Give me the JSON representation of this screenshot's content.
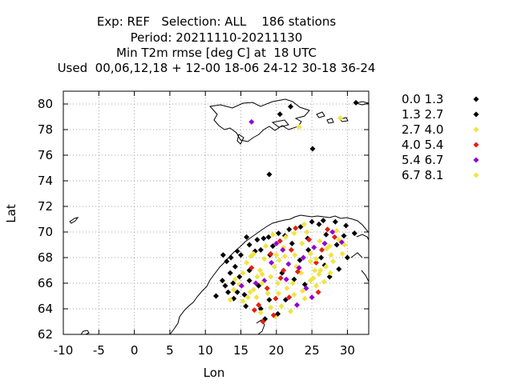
{
  "chart_data": {
    "type": "scatter",
    "title_lines": [
      "Exp: REF   Selection: ALL    186 stations",
      "Period: 20211110-20211130",
      "Min T2m rmse [deg C] at  18 UTC",
      "Used  00,06,12,18 + 12-00 18-06 24-12 30-18 36-24"
    ],
    "xlabel": "Lon",
    "ylabel": "Lat",
    "xlim": [
      -10,
      33
    ],
    "ylim": [
      62,
      81
    ],
    "x_ticks": [
      -10,
      -5,
      0,
      5,
      10,
      15,
      20,
      25,
      30
    ],
    "y_ticks": [
      62,
      64,
      66,
      68,
      70,
      72,
      74,
      76,
      78,
      80
    ],
    "grid": true,
    "legend_position": "right",
    "series": [
      {
        "name": "0.0 1.3",
        "color": "#000000",
        "points": [
          [
            20.5,
            79.2
          ],
          [
            22.0,
            79.8
          ],
          [
            25.1,
            76.5
          ],
          [
            19.0,
            74.5
          ],
          [
            31.2,
            80.1
          ],
          [
            14.5,
            68.5
          ],
          [
            15.0,
            68.2
          ],
          [
            13.6,
            68.0
          ],
          [
            13.0,
            67.7
          ],
          [
            14.2,
            67.3
          ],
          [
            12.4,
            66.2
          ],
          [
            12.8,
            65.8
          ],
          [
            13.2,
            65.3
          ],
          [
            14.0,
            64.8
          ],
          [
            11.5,
            65.0
          ],
          [
            17.3,
            69.4
          ],
          [
            18.9,
            69.6
          ],
          [
            20.3,
            69.9
          ],
          [
            21.8,
            70.2
          ],
          [
            23.4,
            70.4
          ],
          [
            25.0,
            70.8
          ],
          [
            26.6,
            70.9
          ],
          [
            28.3,
            70.8
          ],
          [
            29.8,
            70.5
          ],
          [
            17.8,
            68.6
          ],
          [
            19.1,
            68.2
          ],
          [
            16.2,
            67.0
          ],
          [
            14.8,
            66.5
          ],
          [
            13.5,
            66.8
          ],
          [
            22.2,
            69.1
          ],
          [
            28.5,
            69.0
          ],
          [
            30.0,
            68.0
          ],
          [
            26.8,
            67.4
          ],
          [
            17.5,
            65.8
          ],
          [
            15.5,
            65.1
          ],
          [
            18.4,
            63.2
          ],
          [
            20.2,
            63.6
          ],
          [
            21.3,
            64.7
          ],
          [
            16.2,
            66.2
          ],
          [
            12.5,
            68.2
          ]
        ]
      },
      {
        "name": "1.3 2.7",
        "color": "#000000",
        "points": [
          [
            16.2,
            69.0
          ],
          [
            18.2,
            69.5
          ],
          [
            19.5,
            68.9
          ],
          [
            21.2,
            69.7
          ],
          [
            24.4,
            69.5
          ],
          [
            26.0,
            70.6
          ],
          [
            27.0,
            69.8
          ],
          [
            29.5,
            69.7
          ],
          [
            31.0,
            69.9
          ],
          [
            13.9,
            66.0
          ],
          [
            14.5,
            65.3
          ],
          [
            15.7,
            64.2
          ],
          [
            17.8,
            64.0
          ],
          [
            19.0,
            64.7
          ],
          [
            22.5,
            66.3
          ],
          [
            24.0,
            65.9
          ],
          [
            27.5,
            66.5
          ],
          [
            28.8,
            67.1
          ],
          [
            23.3,
            67.8
          ],
          [
            20.8,
            66.8
          ],
          [
            15.8,
            69.6
          ],
          [
            17.0,
            68.5
          ],
          [
            24.5,
            68.6
          ],
          [
            26.3,
            68.0
          ]
        ]
      },
      {
        "name": "2.7 4.0",
        "color": "#f0e442",
        "points": [
          [
            23.2,
            78.2
          ],
          [
            29.0,
            78.9
          ],
          [
            16.4,
            68.1
          ],
          [
            18.3,
            67.9
          ],
          [
            20.0,
            68.2
          ],
          [
            22.8,
            67.3
          ],
          [
            25.4,
            67.0
          ],
          [
            27.7,
            68.2
          ],
          [
            29.3,
            68.3
          ],
          [
            19.2,
            66.5
          ],
          [
            21.5,
            65.6
          ],
          [
            23.7,
            65.4
          ],
          [
            25.6,
            65.8
          ],
          [
            26.7,
            66.1
          ],
          [
            14.8,
            65.9
          ],
          [
            16.0,
            64.9
          ],
          [
            17.3,
            66.5
          ],
          [
            18.8,
            65.2
          ],
          [
            20.7,
            64.2
          ],
          [
            22.0,
            63.8
          ],
          [
            27.5,
            68.9
          ],
          [
            28.8,
            69.4
          ],
          [
            24.3,
            70.0
          ],
          [
            21.0,
            68.8
          ],
          [
            19.7,
            67.3
          ],
          [
            18.0,
            66.7
          ],
          [
            24.8,
            68.3
          ],
          [
            26.1,
            69.3
          ],
          [
            22.5,
            69.9
          ],
          [
            17.8,
            63.7
          ],
          [
            15.3,
            64.6
          ],
          [
            14.0,
            65.5
          ],
          [
            23.5,
            66.8
          ],
          [
            25.2,
            66.4
          ],
          [
            28.0,
            67.7
          ],
          [
            19.8,
            63.4
          ],
          [
            16.8,
            65.5
          ],
          [
            27.0,
            67.3
          ],
          [
            20.2,
            66.0
          ],
          [
            24.0,
            64.8
          ]
        ]
      },
      {
        "name": "4.0 5.4",
        "color": "#e51e10",
        "points": [
          [
            20.5,
            69.3
          ],
          [
            22.1,
            68.6
          ],
          [
            19.2,
            68.3
          ],
          [
            23.0,
            66.9
          ],
          [
            24.6,
            69.4
          ],
          [
            21.0,
            67.0
          ],
          [
            18.7,
            65.6
          ],
          [
            19.9,
            64.8
          ],
          [
            17.5,
            64.3
          ],
          [
            16.9,
            63.9
          ],
          [
            18.1,
            63.0
          ],
          [
            19.6,
            63.5
          ],
          [
            21.8,
            64.9
          ],
          [
            25.6,
            67.6
          ],
          [
            27.2,
            70.2
          ],
          [
            28.2,
            69.6
          ],
          [
            25.9,
            65.3
          ],
          [
            22.7,
            70.3
          ],
          [
            16.5,
            67.2
          ],
          [
            20.6,
            66.4
          ],
          [
            26.4,
            68.6
          ]
        ]
      },
      {
        "name": "5.4 6.7",
        "color": "#9400d3",
        "points": [
          [
            16.5,
            78.6
          ],
          [
            20.0,
            69.1
          ],
          [
            23.8,
            68.0
          ],
          [
            25.3,
            68.8
          ],
          [
            27.9,
            70.0
          ],
          [
            29.2,
            69.2
          ],
          [
            15.1,
            65.8
          ],
          [
            18.3,
            66.2
          ],
          [
            21.4,
            66.3
          ],
          [
            24.2,
            65.6
          ],
          [
            22.9,
            64.3
          ],
          [
            19.3,
            67.6
          ],
          [
            26.8,
            69.1
          ],
          [
            17.1,
            66.0
          ],
          [
            23.2,
            67.2
          ],
          [
            20.9,
            68.6
          ],
          [
            25.0,
            64.9
          ],
          [
            21.7,
            67.5
          ]
        ]
      },
      {
        "name": "6.7 8.1",
        "color": "#f0e442",
        "points": [
          [
            15.3,
            66.8
          ],
          [
            16.8,
            68.3
          ],
          [
            18.5,
            68.9
          ],
          [
            21.3,
            69.6
          ],
          [
            23.6,
            69.1
          ],
          [
            27.1,
            68.7
          ],
          [
            29.6,
            69.0
          ],
          [
            15.8,
            67.6
          ],
          [
            17.7,
            67.0
          ],
          [
            22.3,
            66.0
          ],
          [
            26.0,
            66.7
          ],
          [
            25.6,
            67.9
          ],
          [
            17.2,
            64.9
          ],
          [
            19.2,
            64.1
          ],
          [
            20.3,
            65.2
          ],
          [
            22.5,
            65.1
          ],
          [
            24.8,
            66.2
          ],
          [
            28.5,
            70.1
          ],
          [
            13.5,
            64.7
          ],
          [
            14.2,
            66.3
          ],
          [
            19.5,
            69.8
          ],
          [
            23.9,
            70.6
          ],
          [
            24.8,
            67.7
          ],
          [
            21.2,
            68.1
          ],
          [
            18.0,
            66.0
          ],
          [
            20.4,
            67.8
          ],
          [
            22.6,
            68.2
          ],
          [
            26.2,
            67.0
          ],
          [
            27.6,
            66.8
          ],
          [
            16.3,
            65.3
          ]
        ]
      }
    ]
  }
}
